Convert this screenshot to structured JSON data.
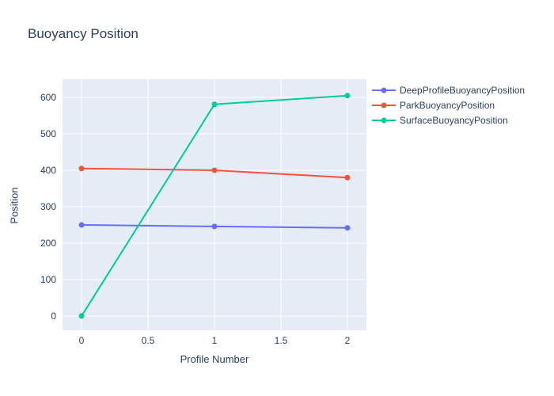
{
  "title": "Buoyancy Position",
  "colors": {
    "background": "#ffffff",
    "plot_background": "#e5ecf6",
    "grid": "#ffffff",
    "text": "#2a3f5f"
  },
  "chart_data": {
    "type": "line",
    "title": "Buoyancy Position",
    "xlabel": "Profile Number",
    "ylabel": "Position",
    "x": [
      0,
      1,
      2
    ],
    "series": [
      {
        "name": "DeepProfileBuoyancyPosition",
        "color": "#636efa",
        "values": [
          250,
          246,
          242
        ]
      },
      {
        "name": "ParkBuoyancyPosition",
        "color": "#ef553b",
        "values": [
          405,
          400,
          380
        ]
      },
      {
        "name": "SurfaceBuoyancyPosition",
        "color": "#00cc96",
        "values": [
          0,
          581,
          605
        ]
      }
    ],
    "x_ticks": [
      0,
      0.5,
      1,
      1.5,
      2
    ],
    "y_ticks": [
      0,
      100,
      200,
      300,
      400,
      500,
      600
    ],
    "xlim": [
      -0.143,
      2.143
    ],
    "ylim": [
      -39,
      650
    ],
    "grid": true,
    "legend_position": "right"
  }
}
